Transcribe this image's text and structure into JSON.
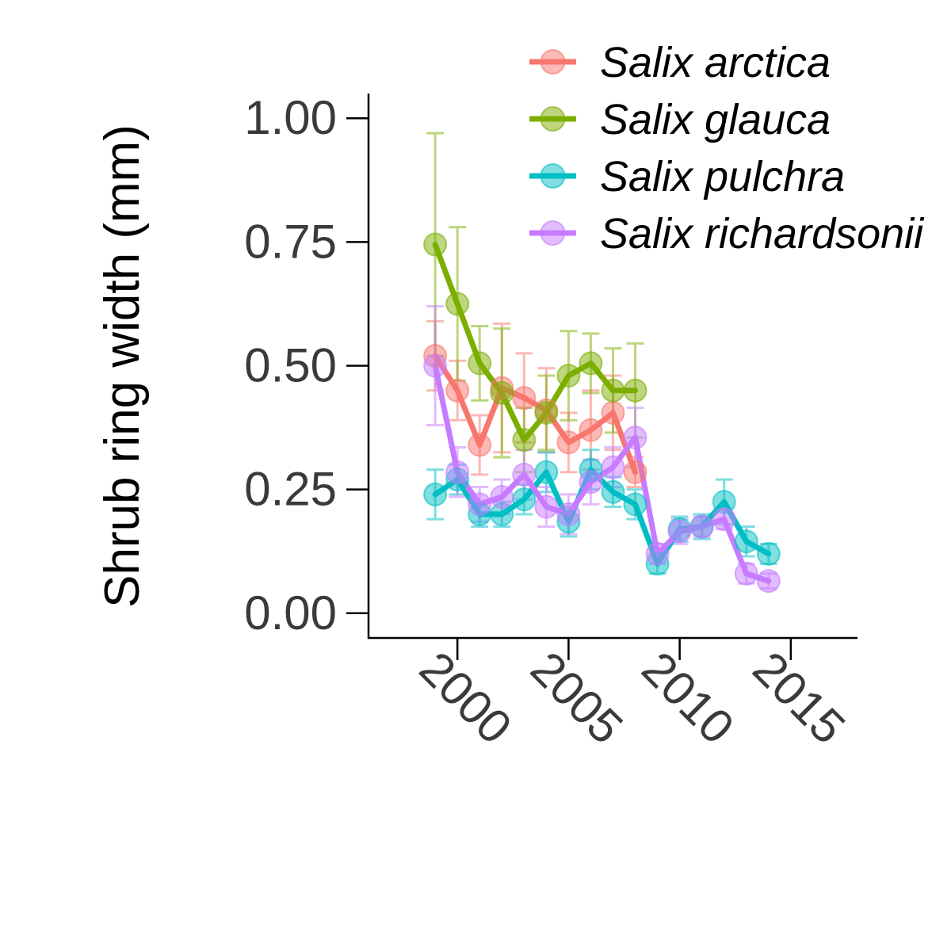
{
  "chart_data": {
    "type": "line",
    "title": "",
    "ylabel": "Shrub ring width (mm)",
    "xlabel": "",
    "xlim": [
      1996,
      2018
    ],
    "ylim": [
      -0.05,
      1.05
    ],
    "x_ticks": [
      2000,
      2005,
      2010,
      2015
    ],
    "y_ticks": [
      "0.00",
      "0.25",
      "0.50",
      "0.75",
      "1.00"
    ],
    "grid": false,
    "legend_position": "top-right",
    "series": [
      {
        "name": "Salix arctica",
        "color": "#F8766D",
        "x": [
          1999,
          2000,
          2001,
          2002,
          2003,
          2004,
          2005,
          2006,
          2007,
          2008
        ],
        "y": [
          0.52,
          0.45,
          0.34,
          0.455,
          0.435,
          0.41,
          0.345,
          0.37,
          0.405,
          0.285
        ],
        "err": [
          0.07,
          0.06,
          0.06,
          0.13,
          0.09,
          0.085,
          0.06,
          0.08,
          0.075,
          0.03
        ]
      },
      {
        "name": "Salix glauca",
        "color": "#7CAE00",
        "x": [
          1999,
          2000,
          2001,
          2002,
          2003,
          2004,
          2005,
          2006,
          2007,
          2008
        ],
        "y": [
          0.745,
          0.625,
          0.505,
          0.445,
          0.35,
          0.405,
          0.48,
          0.505,
          0.45,
          0.45
        ],
        "err": [
          0.225,
          0.155,
          0.075,
          0.13,
          0.065,
          0.075,
          0.09,
          0.06,
          0.085,
          0.095
        ]
      },
      {
        "name": "Salix pulchra",
        "color": "#00BFC4",
        "x": [
          1999,
          2000,
          2001,
          2002,
          2003,
          2004,
          2005,
          2006,
          2007,
          2008,
          2009,
          2010,
          2011,
          2012,
          2013,
          2014
        ],
        "y": [
          0.24,
          0.27,
          0.2,
          0.2,
          0.23,
          0.285,
          0.185,
          0.29,
          0.245,
          0.22,
          0.1,
          0.17,
          0.175,
          0.225,
          0.145,
          0.12
        ],
        "err": [
          0.05,
          0.03,
          0.025,
          0.025,
          0.03,
          0.04,
          0.03,
          0.04,
          0.03,
          0.03,
          0.02,
          0.025,
          0.025,
          0.045,
          0.03,
          0.02
        ]
      },
      {
        "name": "Salix richardsonii",
        "color": "#C77CFF",
        "x": [
          1999,
          2000,
          2001,
          2002,
          2003,
          2004,
          2005,
          2006,
          2007,
          2008,
          2009,
          2010,
          2011,
          2012,
          2013,
          2014
        ],
        "y": [
          0.5,
          0.285,
          0.22,
          0.235,
          0.28,
          0.215,
          0.2,
          0.265,
          0.295,
          0.355,
          0.12,
          0.165,
          0.175,
          0.19,
          0.08,
          0.065
        ],
        "err": [
          0.12,
          0.05,
          0.035,
          0.035,
          0.05,
          0.04,
          0.04,
          0.045,
          0.04,
          0.06,
          0.02,
          0.025,
          0.02,
          0.02,
          0.02,
          0.015
        ]
      }
    ]
  }
}
